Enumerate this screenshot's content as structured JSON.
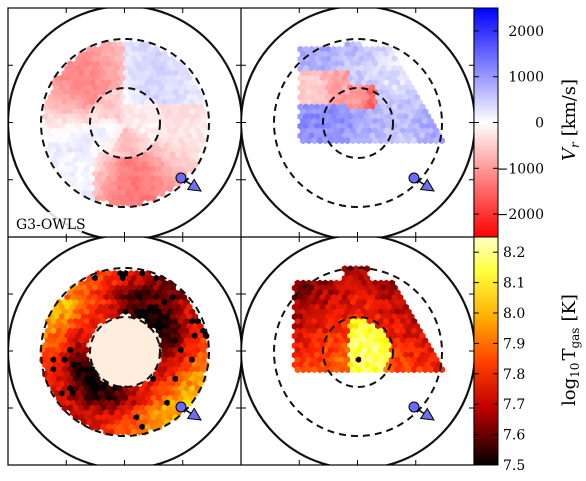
{
  "chart_data": [
    {
      "type": "heatmap",
      "panel_label": "G3-OWLS",
      "quantity": "V_r",
      "colorbar": {
        "label": "V_r [km/s]",
        "label_symbol": "V",
        "label_sub": "r",
        "label_unit": "[km/s]",
        "range": [
          -2500,
          2500
        ],
        "ticks": [
          2000,
          1000,
          0,
          -1000,
          -2000
        ],
        "colormap": [
          "#ff0000",
          "#ffffff",
          "#0000ff"
        ]
      },
      "panels": [
        {
          "position": "top-left",
          "fill": "full-annulus",
          "sign_pattern": "mixed, red-dominated"
        },
        {
          "position": "top-right",
          "fill": "partial-patch",
          "sign_pattern": "mixed, blue-dominated"
        }
      ]
    },
    {
      "type": "heatmap",
      "quantity": "log10 T_gas",
      "colorbar": {
        "label": "log10 T_gas [K]",
        "label_main": "log",
        "label_sub": "10",
        "label_T": "T",
        "label_Tsub": "gas",
        "label_unit": "[K]",
        "range": [
          7.5,
          8.25
        ],
        "ticks": [
          "8.2",
          "8.1",
          "8.0",
          "7.9",
          "7.8",
          "7.7",
          "7.6",
          "7.5"
        ],
        "colormap": [
          "#000000",
          "#8b0000",
          "#ff2000",
          "#ff8000",
          "#ffff00",
          "#ffffc0"
        ]
      },
      "panels": [
        {
          "position": "bottom-left",
          "fill": "full-annulus",
          "range_seen": [
            7.5,
            8.1
          ]
        },
        {
          "position": "bottom-right",
          "fill": "partial-patch",
          "range_seen": [
            7.6,
            8.25
          ]
        }
      ]
    }
  ],
  "icons": {
    "marker": "blue-circle-with-arrow-icon"
  },
  "colors": {
    "marker_fill": "#6a6aff",
    "arrow_fill": "#7070ee"
  }
}
